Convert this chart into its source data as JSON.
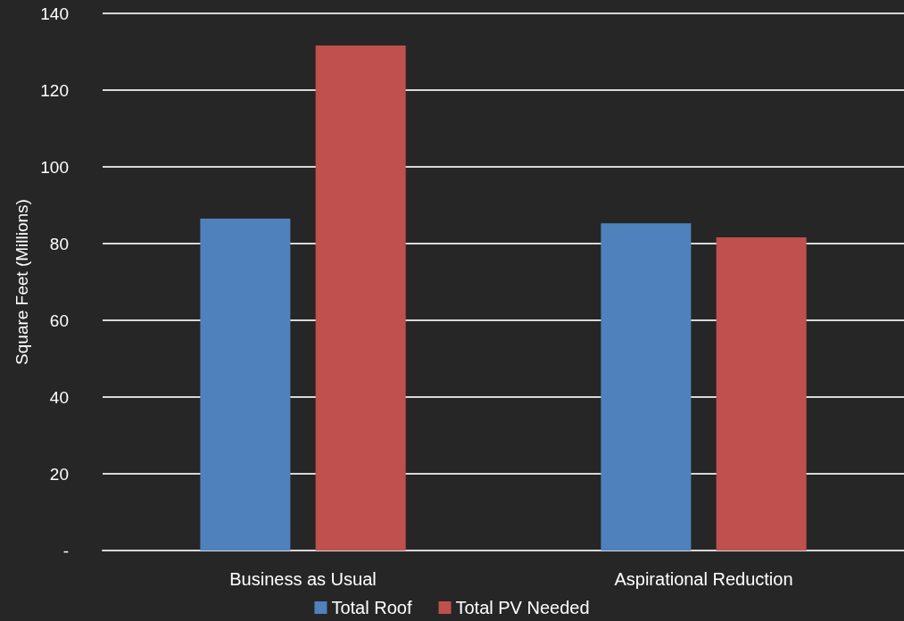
{
  "chart_data": {
    "type": "bar",
    "ylabel": "Square Feet (Millions)",
    "categories": [
      "Business as Usual",
      "Aspirational Reduction"
    ],
    "series": [
      {
        "name": "Total Roof",
        "color": "#4f81bd",
        "values": [
          86.5,
          85.3
        ]
      },
      {
        "name": "Total PV Needed",
        "color": "#c0504d",
        "values": [
          131.6,
          81.6
        ]
      }
    ],
    "ylim": [
      0,
      140
    ],
    "yticks": [
      {
        "value": 0,
        "label": "-"
      },
      20,
      40,
      60,
      80,
      100,
      120,
      140
    ],
    "grid": "y",
    "legend": "bottom"
  }
}
